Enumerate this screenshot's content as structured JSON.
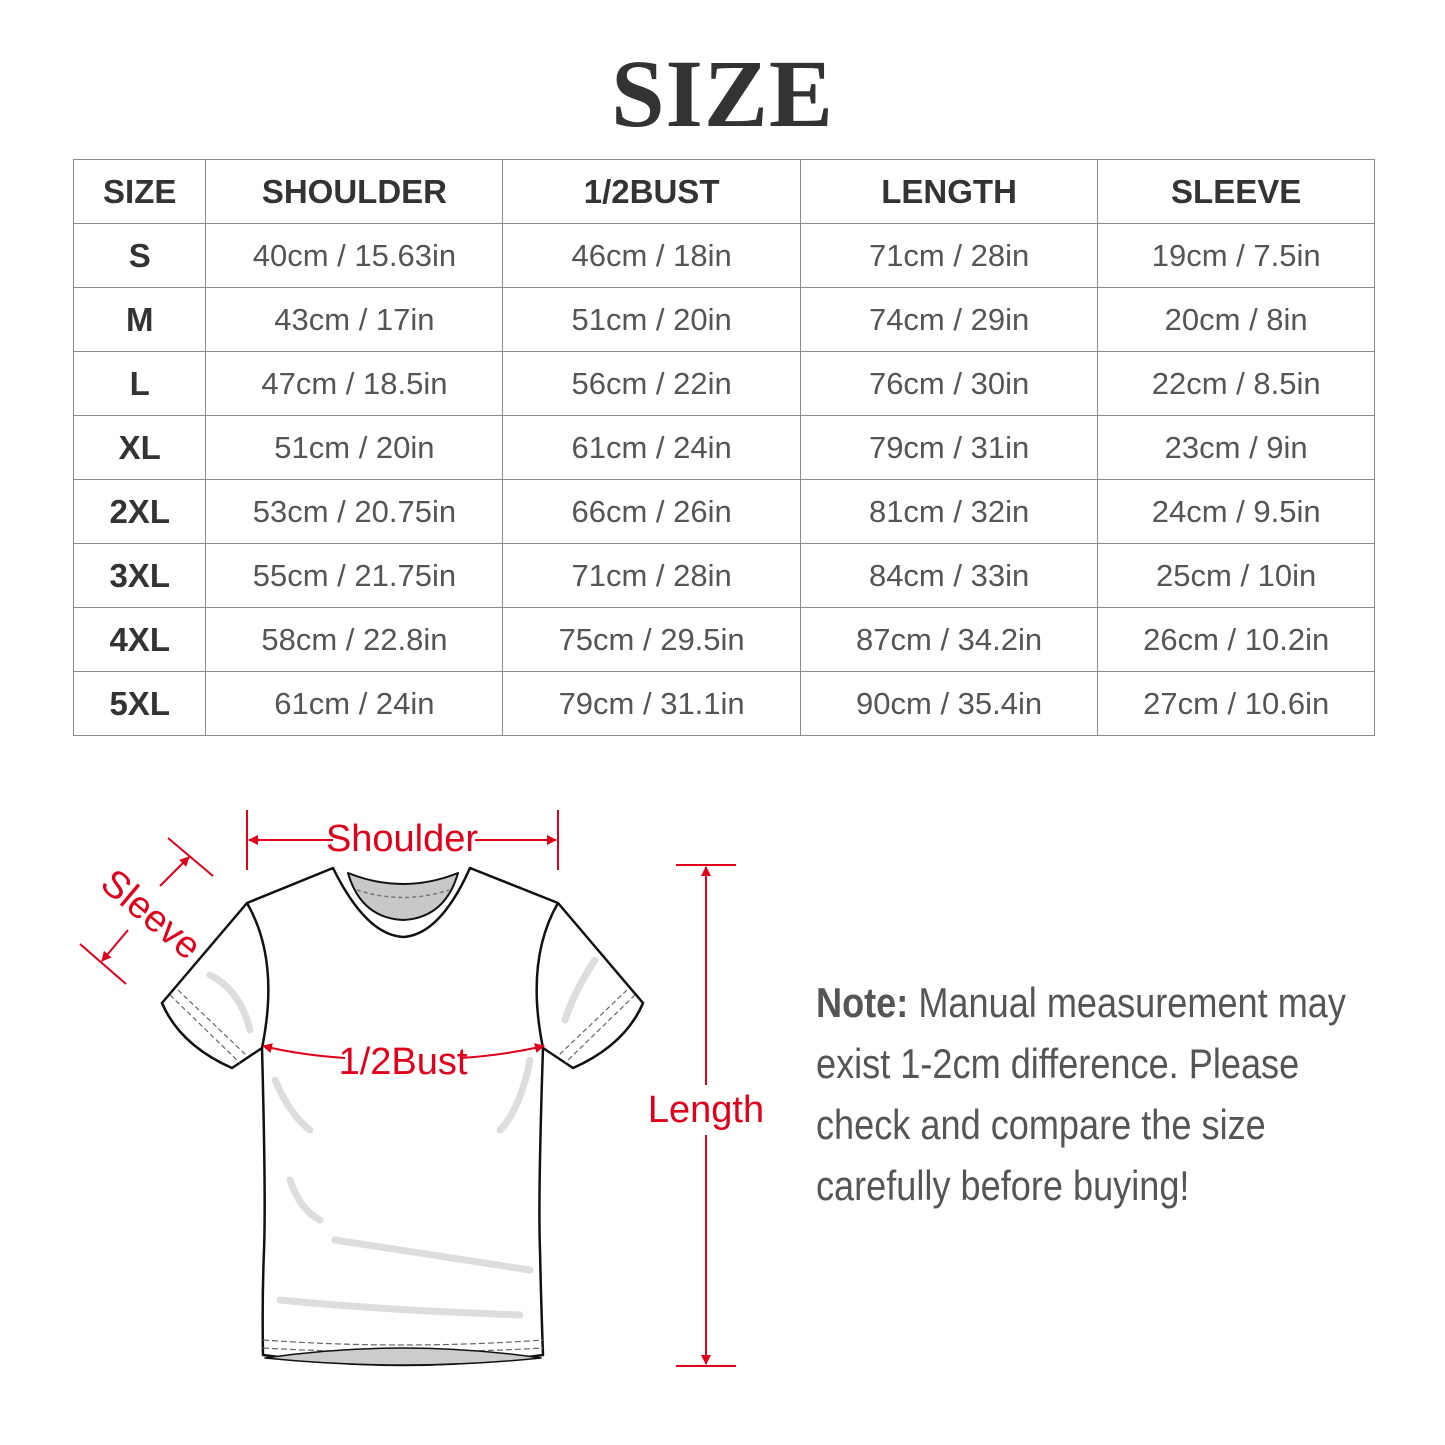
{
  "title": "SIZE",
  "table": {
    "headers": [
      "SIZE",
      "SHOULDER",
      "1/2BUST",
      "LENGTH",
      "SLEEVE"
    ],
    "rows": [
      [
        "S",
        "40cm / 15.63in",
        "46cm / 18in",
        "71cm / 28in",
        "19cm / 7.5in"
      ],
      [
        "M",
        "43cm / 17in",
        "51cm / 20in",
        "74cm / 29in",
        "20cm / 8in"
      ],
      [
        "L",
        "47cm / 18.5in",
        "56cm / 22in",
        "76cm / 30in",
        "22cm / 8.5in"
      ],
      [
        "XL",
        "51cm / 20in",
        "61cm / 24in",
        "79cm / 31in",
        "23cm / 9in"
      ],
      [
        "2XL",
        "53cm / 20.75in",
        "66cm / 26in",
        "81cm / 32in",
        "24cm / 9.5in"
      ],
      [
        "3XL",
        "55cm / 21.75in",
        "71cm / 28in",
        "84cm / 33in",
        "25cm / 10in"
      ],
      [
        "4XL",
        "58cm / 22.8in",
        "75cm / 29.5in",
        "87cm / 34.2in",
        "26cm / 10.2in"
      ],
      [
        "5XL",
        "61cm / 24in",
        "79cm / 31.1in",
        "90cm / 35.4in",
        "27cm / 10.6in"
      ]
    ]
  },
  "diagram": {
    "shoulder_label": "Shoulder",
    "sleeve_label": "Sleeve",
    "bust_label": "1/2Bust",
    "length_label": "Length",
    "accent_color": "#e0001b"
  },
  "note": {
    "label": "Note:",
    "lines": [
      "Manual measurement may",
      "exist 1-2cm difference. Please",
      "check and compare the size",
      "carefully before buying!"
    ]
  }
}
